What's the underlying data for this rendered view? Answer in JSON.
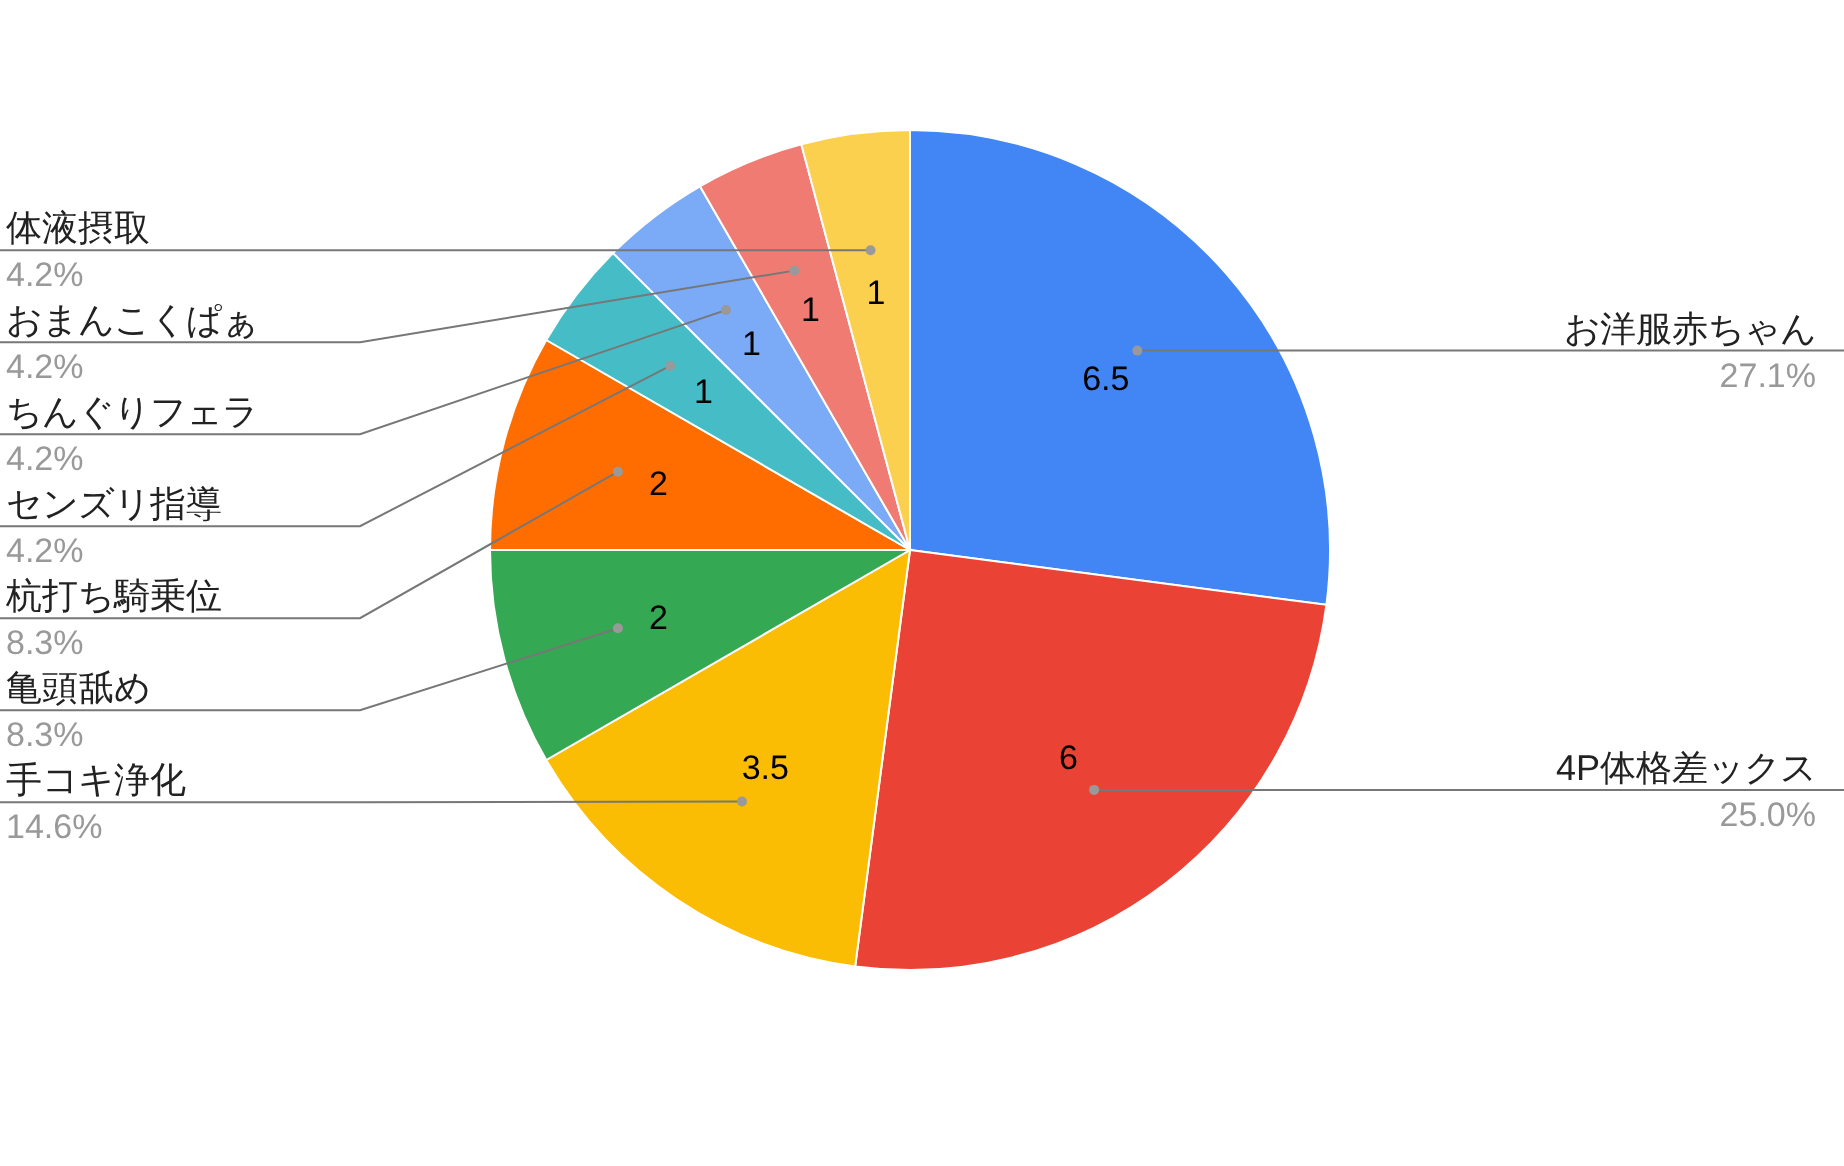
{
  "chart_data": {
    "type": "pie",
    "categories": [
      "お洋服赤ちゃん",
      "4P体格差ックス",
      "手コキ浄化",
      "亀頭舐め",
      "杭打ち騎乗位",
      "センズリ指導",
      "ちんぐりフェラ",
      "おまんこくぱぁ",
      "体液摂取"
    ],
    "values": [
      6.5,
      6,
      3.5,
      2,
      2,
      1,
      1,
      1,
      1
    ],
    "colors": [
      "#4285f4",
      "#ea4335",
      "#fbbc04",
      "#34a853",
      "#ff6d01",
      "#46bdc6",
      "#7baaf7",
      "#f07b72",
      "#fcd04f"
    ],
    "data_labels": true,
    "annotations": [
      "27.1%",
      "25.0%",
      "14.6%",
      "8.3%",
      "8.3%",
      "4.2%",
      "4.2%",
      "4.2%",
      "4.2%"
    ]
  }
}
